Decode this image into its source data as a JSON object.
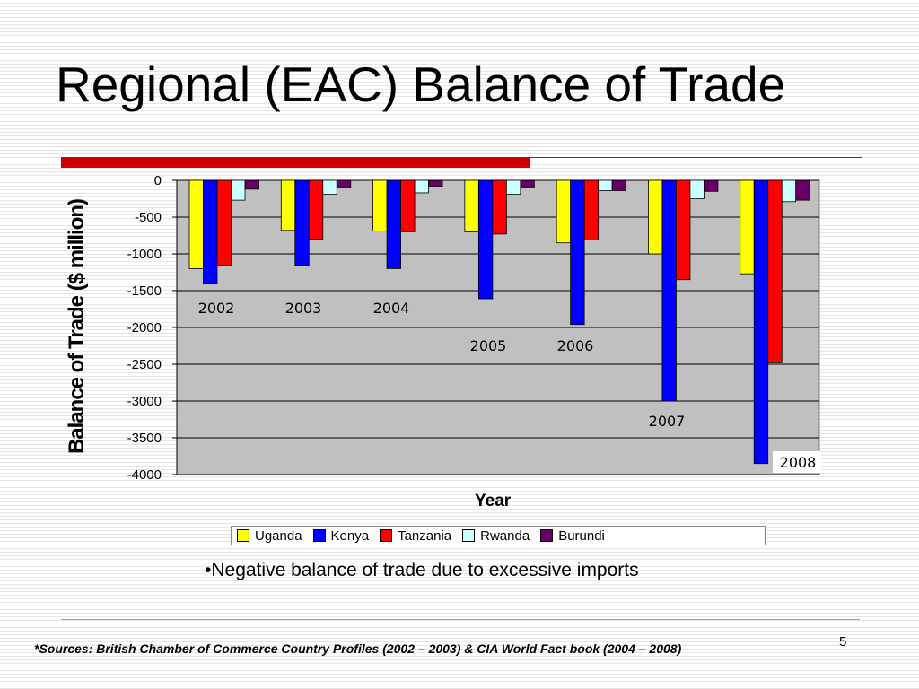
{
  "slide": {
    "title": "Regional (EAC) Balance of Trade",
    "bullet": "Negative balance of trade due to excessive imports",
    "bullet_marker": "•",
    "sources": "*Sources: British Chamber of Commerce Country Profiles (2002 – 2003) & CIA World Fact book (2004 – 2008)",
    "page_number": "5"
  },
  "colors": {
    "Uganda": "#ffff00",
    "Kenya": "#0000ff",
    "Tanzania": "#ff0000",
    "Rwanda": "#ccffff",
    "Burundi": "#660066",
    "plot_bg": "#c0c0c0",
    "accent_red": "#cc0000"
  },
  "chart_data": {
    "type": "bar",
    "categories": [
      "2002",
      "2003",
      "2004",
      "2005",
      "2006",
      "2007",
      "2008"
    ],
    "series": [
      {
        "name": "Uganda",
        "values": [
          -1200,
          -680,
          -690,
          -700,
          -850,
          -1000,
          -1270
        ]
      },
      {
        "name": "Kenya",
        "values": [
          -1410,
          -1160,
          -1200,
          -1610,
          -1960,
          -3000,
          -3850
        ]
      },
      {
        "name": "Tanzania",
        "values": [
          -1160,
          -800,
          -700,
          -730,
          -810,
          -1350,
          -2480
        ]
      },
      {
        "name": "Rwanda",
        "values": [
          -270,
          -190,
          -170,
          -190,
          -140,
          -250,
          -290
        ]
      },
      {
        "name": "Burundi",
        "values": [
          -120,
          -100,
          -80,
          -100,
          -140,
          -150,
          -270
        ]
      }
    ],
    "yticks": [
      "0",
      "-500",
      "-1000",
      "-1500",
      "-2000",
      "-2500",
      "-3000",
      "-3500",
      "-4000"
    ],
    "ylim": [
      -4000,
      0
    ],
    "ylabel": "Balance of Trade ($ million)",
    "xlabel": "Year",
    "grid": true,
    "legend": "bottom"
  }
}
